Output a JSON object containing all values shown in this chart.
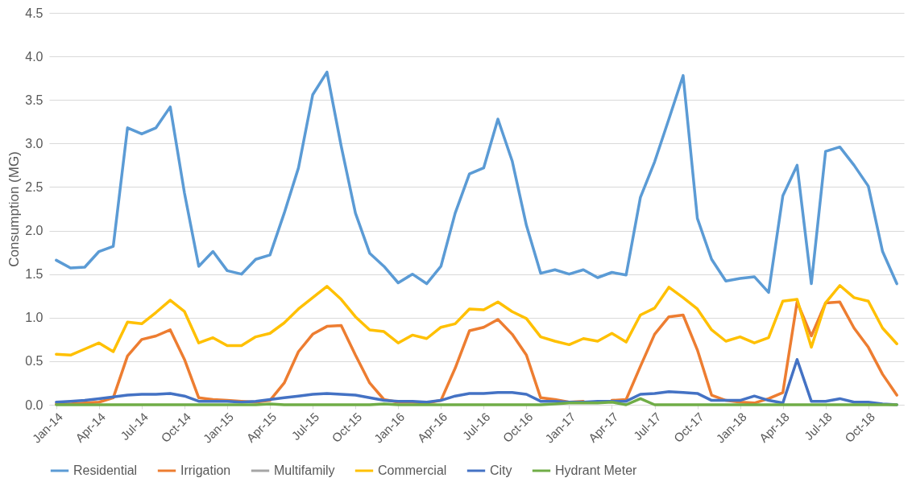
{
  "chart_data": {
    "type": "line",
    "ylabel": "Consumption (MG)",
    "grid": "y",
    "legend": "bottom",
    "line_style": "solid",
    "categories": [
      "Jan-14",
      null,
      null,
      "Apr-14",
      null,
      null,
      "Jul-14",
      null,
      null,
      "Oct-14",
      null,
      null,
      "Jan-15",
      null,
      null,
      "Apr-15",
      null,
      null,
      "Jul-15",
      null,
      null,
      "Oct-15",
      null,
      null,
      "Jan-16",
      null,
      null,
      "Apr-16",
      null,
      null,
      "Jul-16",
      null,
      null,
      "Oct-16",
      null,
      null,
      "Jan-17",
      null,
      null,
      "Apr-17",
      null,
      null,
      "Jul-17",
      null,
      null,
      "Oct-17",
      null,
      null,
      "Jan-18",
      null,
      null,
      "Apr-18",
      null,
      null,
      "Jul-18",
      null,
      null,
      "Oct-18",
      null,
      null
    ],
    "ylim": [
      0,
      4.5
    ],
    "yticks": [
      {
        "value": 0,
        "label": "0.0"
      },
      {
        "value": 0.5,
        "label": "0.5"
      },
      {
        "value": 1,
        "label": "1.0"
      },
      {
        "value": 1.5,
        "label": "1.5"
      },
      {
        "value": 2,
        "label": "2.0"
      },
      {
        "value": 2.5,
        "label": "2.5"
      },
      {
        "value": 3,
        "label": "3.0"
      },
      {
        "value": 3.5,
        "label": "3.5"
      },
      {
        "value": 4,
        "label": "4.0"
      },
      {
        "value": 4.5,
        "label": "4.5"
      }
    ],
    "series": [
      {
        "name": "Residential",
        "color": "#5b9bd5",
        "values": [
          1.66,
          1.57,
          1.58,
          1.76,
          1.82,
          3.18,
          3.11,
          3.18,
          3.42,
          2.43,
          1.59,
          1.76,
          1.54,
          1.5,
          1.67,
          1.72,
          2.2,
          2.72,
          3.56,
          3.82,
          2.97,
          2.2,
          1.74,
          1.59,
          1.4,
          1.5,
          1.39,
          1.59,
          2.2,
          2.65,
          2.72,
          3.28,
          2.8,
          2.06,
          1.51,
          1.55,
          1.5,
          1.55,
          1.46,
          1.52,
          1.49,
          2.38,
          2.79,
          3.28,
          3.78,
          2.14,
          1.67,
          1.42,
          1.45,
          1.47,
          1.29,
          2.4,
          2.75,
          1.39,
          2.91,
          2.96,
          2.75,
          2.51,
          1.76,
          1.39
        ]
      },
      {
        "name": "Irrigation",
        "color": "#ed7d31",
        "values": [
          0.01,
          0.01,
          0.02,
          0.03,
          0.08,
          0.56,
          0.75,
          0.79,
          0.86,
          0.52,
          0.08,
          0.06,
          0.05,
          0.04,
          0.03,
          0.05,
          0.25,
          0.61,
          0.81,
          0.9,
          0.91,
          0.57,
          0.25,
          0.06,
          0.03,
          0.03,
          0.02,
          0.05,
          0.42,
          0.85,
          0.89,
          0.98,
          0.81,
          0.57,
          0.08,
          0.06,
          0.03,
          0.04,
          null,
          0.05,
          0.06,
          0.44,
          0.81,
          1.01,
          1.03,
          0.63,
          0.11,
          0.05,
          0.03,
          0.02,
          0.07,
          0.14,
          1.18,
          0.79,
          1.17,
          1.18,
          0.88,
          0.66,
          0.35,
          0.11
        ]
      },
      {
        "name": "Multifamily",
        "color": "#a5a5a5",
        "values": [
          null,
          null,
          null,
          null,
          null,
          null,
          null,
          null,
          null,
          null,
          null,
          null,
          null,
          null,
          null,
          null,
          null,
          null,
          null,
          null,
          null,
          null,
          null,
          null,
          null,
          null,
          null,
          null,
          null,
          null,
          null,
          null,
          null,
          null,
          null,
          null,
          null,
          null,
          null,
          null,
          null,
          null,
          null,
          null,
          null,
          null,
          null,
          null,
          null,
          null,
          null,
          null,
          null,
          null,
          null,
          null,
          null,
          null,
          null,
          null
        ]
      },
      {
        "name": "Commercial",
        "color": "#ffc000",
        "values": [
          0.58,
          0.57,
          0.64,
          0.71,
          0.61,
          0.95,
          0.93,
          1.06,
          1.2,
          1.07,
          0.71,
          0.77,
          0.68,
          0.68,
          0.78,
          0.82,
          0.94,
          1.1,
          1.23,
          1.36,
          1.21,
          1.01,
          0.86,
          0.84,
          0.71,
          0.8,
          0.76,
          0.89,
          0.93,
          1.1,
          1.09,
          1.18,
          1.07,
          0.99,
          0.78,
          0.73,
          0.69,
          0.76,
          0.73,
          0.82,
          0.72,
          1.03,
          1.11,
          1.35,
          1.23,
          1.1,
          0.86,
          0.73,
          0.78,
          0.71,
          0.77,
          1.19,
          1.21,
          0.66,
          1.17,
          1.37,
          1.23,
          1.19,
          0.88,
          0.7
        ]
      },
      {
        "name": "City",
        "color": "#4472c4",
        "values": [
          0.03,
          0.04,
          0.05,
          0.07,
          0.09,
          0.11,
          0.12,
          0.12,
          0.13,
          0.1,
          0.04,
          0.04,
          0.04,
          0.03,
          0.04,
          0.06,
          0.08,
          0.1,
          0.12,
          0.13,
          0.12,
          0.11,
          0.08,
          0.05,
          0.04,
          0.04,
          0.03,
          0.05,
          0.1,
          0.13,
          0.13,
          0.14,
          0.14,
          0.12,
          0.04,
          0.04,
          0.03,
          0.03,
          0.04,
          0.04,
          0.04,
          0.12,
          0.13,
          0.15,
          0.14,
          0.13,
          0.05,
          0.05,
          0.05,
          0.1,
          0.05,
          0.02,
          0.52,
          0.04,
          0.04,
          0.07,
          0.03,
          0.03,
          0.01,
          0.0
        ]
      },
      {
        "name": "Hydrant Meter",
        "color": "#70ad47",
        "values": [
          0.0,
          0.0,
          0.0,
          0.0,
          0.0,
          0.0,
          0.0,
          0.0,
          0.0,
          0.0,
          0.0,
          0.0,
          0.0,
          0.0,
          0.0,
          0.01,
          0.0,
          0.0,
          0.0,
          0.0,
          0.0,
          0.0,
          0.0,
          0.01,
          0.0,
          0.0,
          0.0,
          0.0,
          0.0,
          0.0,
          0.0,
          0.0,
          0.0,
          0.0,
          0.0,
          0.01,
          0.02,
          0.02,
          0.02,
          0.03,
          0.0,
          0.07,
          0.0,
          0.0,
          0.0,
          0.0,
          0.0,
          0.0,
          0.0,
          0.0,
          0.0,
          0.0,
          0.0,
          0.0,
          0.0,
          0.0,
          0.0,
          0.0,
          0.0,
          0.0
        ]
      }
    ]
  }
}
